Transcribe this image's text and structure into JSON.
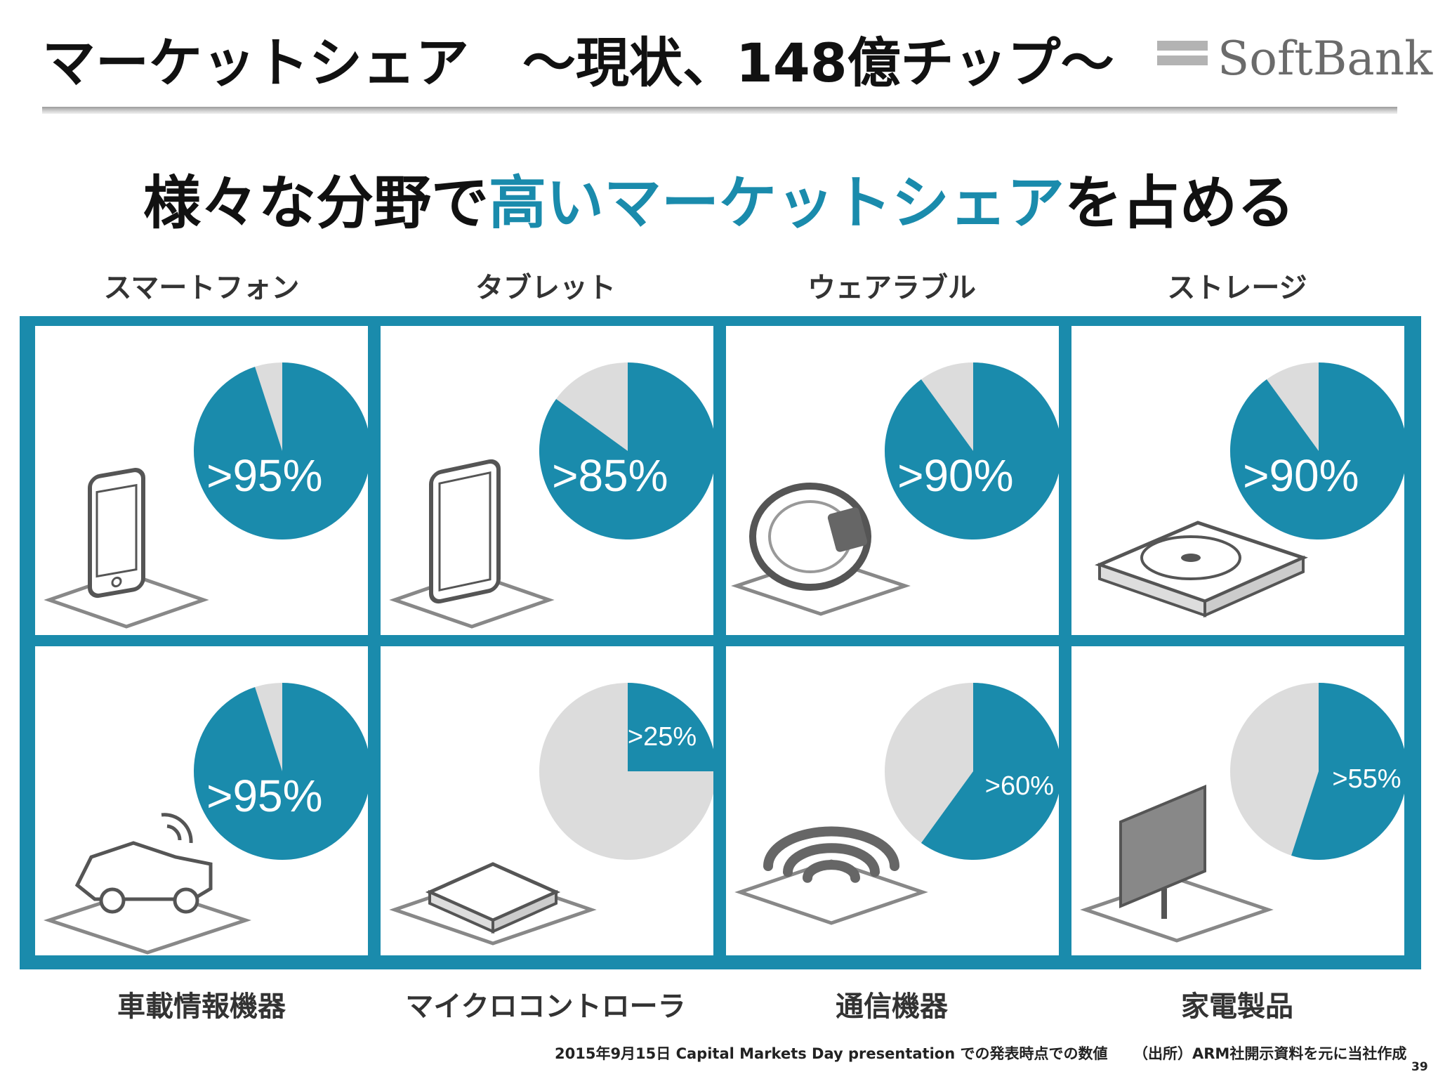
{
  "header": {
    "title": "マーケットシェア　～現状、148億チップ～",
    "logo_text": "SoftBank"
  },
  "subtitle": {
    "part1": "様々な分野で",
    "accent": "高いマーケットシェア",
    "part2": "を占める"
  },
  "colors": {
    "accent": "#1a8bac",
    "pie_rest": "#dcdcdc",
    "icon": "#555555"
  },
  "chart_data": {
    "type": "pie",
    "unit": "%",
    "categories": [
      "スマートフォン",
      "タブレット",
      "ウェアラブル",
      "ストレージ",
      "車載情報機器",
      "マイクロコントローラ",
      "通信機器",
      "家電製品"
    ],
    "values": [
      95,
      85,
      90,
      90,
      95,
      25,
      60,
      55
    ],
    "labels": [
      ">95%",
      ">85%",
      ">90%",
      ">90%",
      ">95%",
      ">25%",
      ">60%",
      ">55%"
    ],
    "icons": [
      "smartphone-icon",
      "tablet-icon",
      "wearable-band-icon",
      "hard-disk-icon",
      "car-icon",
      "microcontroller-chip-icon",
      "wifi-icon",
      "monitor-icon"
    ]
  },
  "footnote": {
    "left": "2015年9月15日 Capital Markets Day presentation での発表時点での数値",
    "right": "（出所）ARM社開示資料を元に当社作成"
  },
  "page_number": "39"
}
